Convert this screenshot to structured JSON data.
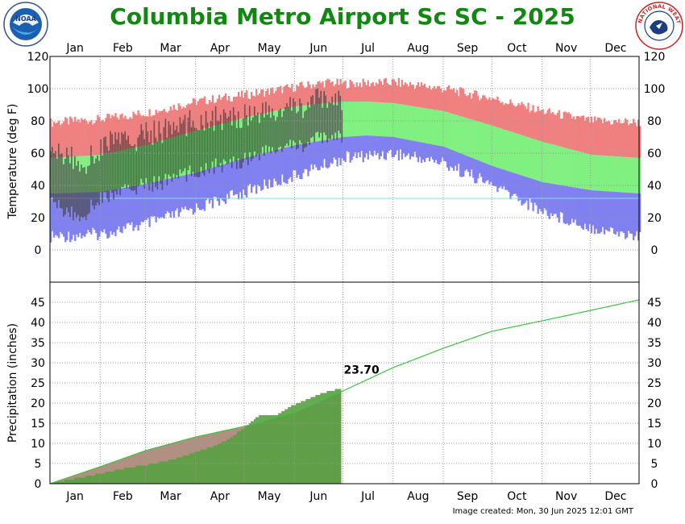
{
  "page": {
    "title": "Columbia Metro Airport Sc SC - 2025",
    "credit": "Image created: Mon, 30 Jun 2025 12:01 GMT",
    "logo_left_text": "NOAA",
    "logo_right_text": "NATIONAL WEATHER SERVICE"
  },
  "colors": {
    "title": "#118811",
    "record_range": "#f08080",
    "normal_range": "#80f080",
    "record_low_range": "#8080f0",
    "observed_temp": "#404040",
    "precip_normal_line": "#40c040",
    "precip_observed_fill": "#58a040",
    "precip_normal_fill": "#b09080",
    "freezing_line": "#80e0e0"
  },
  "chart_data": [
    {
      "type": "area",
      "ylabel": "Temperature (deg F)",
      "ylim": [
        -20,
        120
      ],
      "yticks": [
        0,
        20,
        40,
        60,
        80,
        100,
        120
      ],
      "months": [
        "Jan",
        "Feb",
        "Mar",
        "Apr",
        "May",
        "Jun",
        "Jul",
        "Aug",
        "Sep",
        "Oct",
        "Nov",
        "Dec"
      ],
      "grid": true,
      "series": [
        {
          "key": "normal_high",
          "days": [
            1,
            32,
            60,
            91,
            121,
            152,
            182,
            196,
            213,
            244,
            274,
            305,
            335,
            365
          ],
          "values": [
            57,
            59,
            65,
            74,
            82,
            89,
            92,
            92,
            91,
            86,
            77,
            67,
            59,
            57
          ]
        },
        {
          "key": "normal_low",
          "days": [
            1,
            32,
            60,
            91,
            121,
            152,
            182,
            196,
            213,
            244,
            274,
            305,
            335,
            365
          ],
          "values": [
            35,
            36,
            41,
            48,
            57,
            65,
            70,
            71,
            70,
            64,
            52,
            42,
            37,
            35
          ]
        },
        {
          "key": "record_high",
          "days": [
            1,
            32,
            60,
            91,
            121,
            152,
            172,
            182,
            213,
            244,
            274,
            305,
            335,
            365
          ],
          "values": [
            79,
            81,
            85,
            92,
            96,
            101,
            104,
            103,
            104,
            100,
            94,
            86,
            80,
            79
          ]
        },
        {
          "key": "record_low",
          "days": [
            1,
            32,
            60,
            91,
            121,
            152,
            182,
            213,
            244,
            274,
            305,
            335,
            365
          ],
          "values": [
            8,
            10,
            16,
            26,
            36,
            46,
            57,
            60,
            54,
            40,
            24,
            14,
            8
          ]
        },
        {
          "key": "observed",
          "end_day": 181,
          "days": [
            1,
            10,
            20,
            31,
            40,
            50,
            59,
            70,
            80,
            90,
            100,
            110,
            120,
            130,
            140,
            150,
            160,
            170,
            181
          ],
          "highs": [
            58,
            60,
            52,
            62,
            70,
            66,
            72,
            74,
            76,
            80,
            82,
            80,
            84,
            86,
            84,
            88,
            90,
            94,
            92
          ],
          "lows": [
            30,
            24,
            20,
            32,
            34,
            38,
            40,
            42,
            46,
            48,
            52,
            52,
            56,
            60,
            62,
            64,
            66,
            70,
            70
          ]
        }
      ],
      "freezing_line": 32
    },
    {
      "type": "area",
      "ylabel": "Precipitation (inches)",
      "ylim": [
        0,
        50
      ],
      "yticks": [
        0,
        5,
        10,
        15,
        20,
        25,
        30,
        35,
        40,
        45
      ],
      "months": [
        "Jan",
        "Feb",
        "Mar",
        "Apr",
        "May",
        "Jun",
        "Jul",
        "Aug",
        "Sep",
        "Oct",
        "Nov",
        "Dec"
      ],
      "grid": true,
      "series": [
        {
          "key": "normal_cumulative",
          "days": [
            1,
            32,
            60,
            91,
            121,
            152,
            182,
            213,
            244,
            274,
            305,
            335,
            365
          ],
          "values": [
            0,
            4.2,
            8.2,
            11.6,
            14.2,
            17.6,
            23.0,
            28.8,
            33.6,
            37.8,
            40.4,
            43.0,
            45.6
          ]
        },
        {
          "key": "observed_cumulative",
          "end_day": 181,
          "days": [
            1,
            10,
            20,
            31,
            40,
            50,
            59,
            70,
            80,
            90,
            100,
            110,
            120,
            130,
            140,
            150,
            160,
            170,
            181
          ],
          "values": [
            0,
            0.8,
            1.6,
            2.4,
            3.2,
            4.0,
            4.6,
            5.4,
            6.4,
            7.8,
            9.0,
            10.8,
            13.6,
            17.0,
            17.0,
            19.4,
            21.0,
            22.6,
            23.7
          ]
        }
      ],
      "annotation": "23.70"
    }
  ]
}
